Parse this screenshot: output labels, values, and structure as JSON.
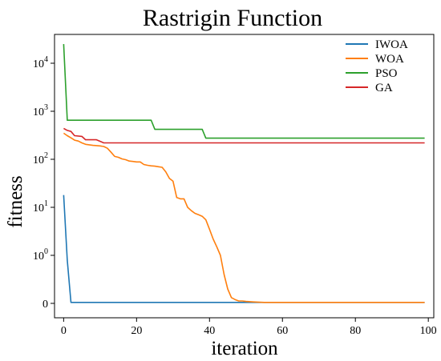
{
  "chart_data": {
    "type": "line",
    "title": "Rastrigin Function",
    "xlabel": "iteration",
    "ylabel": "fitness",
    "xlim": [
      -2.5,
      101.5
    ],
    "y_scale": "symlog",
    "grid": false,
    "legend_position": "top-right",
    "x_ticks": [
      {
        "value": 0,
        "label": "0"
      },
      {
        "value": 20,
        "label": "20"
      },
      {
        "value": 40,
        "label": "40"
      },
      {
        "value": 60,
        "label": "60"
      },
      {
        "value": 80,
        "label": "80"
      },
      {
        "value": 100,
        "label": "100"
      }
    ],
    "y_ticks": [
      {
        "value": 0,
        "base": "0",
        "exp": ""
      },
      {
        "value": 1,
        "base": "10",
        "exp": "0"
      },
      {
        "value": 10,
        "base": "10",
        "exp": "1"
      },
      {
        "value": 100,
        "base": "10",
        "exp": "2"
      },
      {
        "value": 1000,
        "base": "10",
        "exp": "3"
      },
      {
        "value": 10000,
        "base": "10",
        "exp": "4"
      }
    ],
    "series": [
      {
        "name": "IWOA",
        "color": "#1f77b4",
        "points": [
          [
            0,
            18
          ],
          [
            1,
            0.9
          ],
          [
            2,
            0.02
          ],
          [
            50,
            0.02
          ],
          [
            99,
            0.02
          ]
        ]
      },
      {
        "name": "WOA",
        "color": "#ff7f0e",
        "points": [
          [
            0,
            350
          ],
          [
            1,
            310
          ],
          [
            2,
            280
          ],
          [
            3,
            250
          ],
          [
            4,
            240
          ],
          [
            5,
            220
          ],
          [
            6,
            205
          ],
          [
            7,
            200
          ],
          [
            8,
            195
          ],
          [
            10,
            190
          ],
          [
            11,
            185
          ],
          [
            12,
            170
          ],
          [
            13,
            140
          ],
          [
            14,
            115
          ],
          [
            15,
            110
          ],
          [
            16,
            102
          ],
          [
            17,
            98
          ],
          [
            18,
            92
          ],
          [
            19,
            90
          ],
          [
            20,
            88
          ],
          [
            21,
            88
          ],
          [
            22,
            78
          ],
          [
            23,
            75
          ],
          [
            24,
            73
          ],
          [
            25,
            72
          ],
          [
            26,
            70
          ],
          [
            27,
            68
          ],
          [
            28,
            55
          ],
          [
            29,
            40
          ],
          [
            30,
            35
          ],
          [
            31,
            16
          ],
          [
            32,
            15
          ],
          [
            33,
            15
          ],
          [
            34,
            10
          ],
          [
            35,
            8.5
          ],
          [
            36,
            7.5
          ],
          [
            37,
            7
          ],
          [
            38,
            6.5
          ],
          [
            39,
            5.5
          ],
          [
            40,
            3.5
          ],
          [
            41,
            2.2
          ],
          [
            42,
            1.5
          ],
          [
            43,
            1.0
          ],
          [
            44,
            0.6
          ],
          [
            45,
            0.3
          ],
          [
            46,
            0.12
          ],
          [
            47,
            0.08
          ],
          [
            48,
            0.05
          ],
          [
            49,
            0.05
          ],
          [
            50,
            0.04
          ],
          [
            52,
            0.03
          ],
          [
            55,
            0.02
          ],
          [
            99,
            0.02
          ]
        ]
      },
      {
        "name": "PSO",
        "color": "#2ca02c",
        "points": [
          [
            0,
            25000
          ],
          [
            1,
            650
          ],
          [
            24,
            650
          ],
          [
            25,
            420
          ],
          [
            38,
            420
          ],
          [
            39,
            275
          ],
          [
            99,
            275
          ]
        ]
      },
      {
        "name": "GA",
        "color": "#d62728",
        "points": [
          [
            0,
            440
          ],
          [
            1,
            400
          ],
          [
            2,
            380
          ],
          [
            3,
            310
          ],
          [
            5,
            300
          ],
          [
            6,
            255
          ],
          [
            9,
            255
          ],
          [
            11,
            220
          ],
          [
            99,
            220
          ]
        ]
      }
    ]
  }
}
